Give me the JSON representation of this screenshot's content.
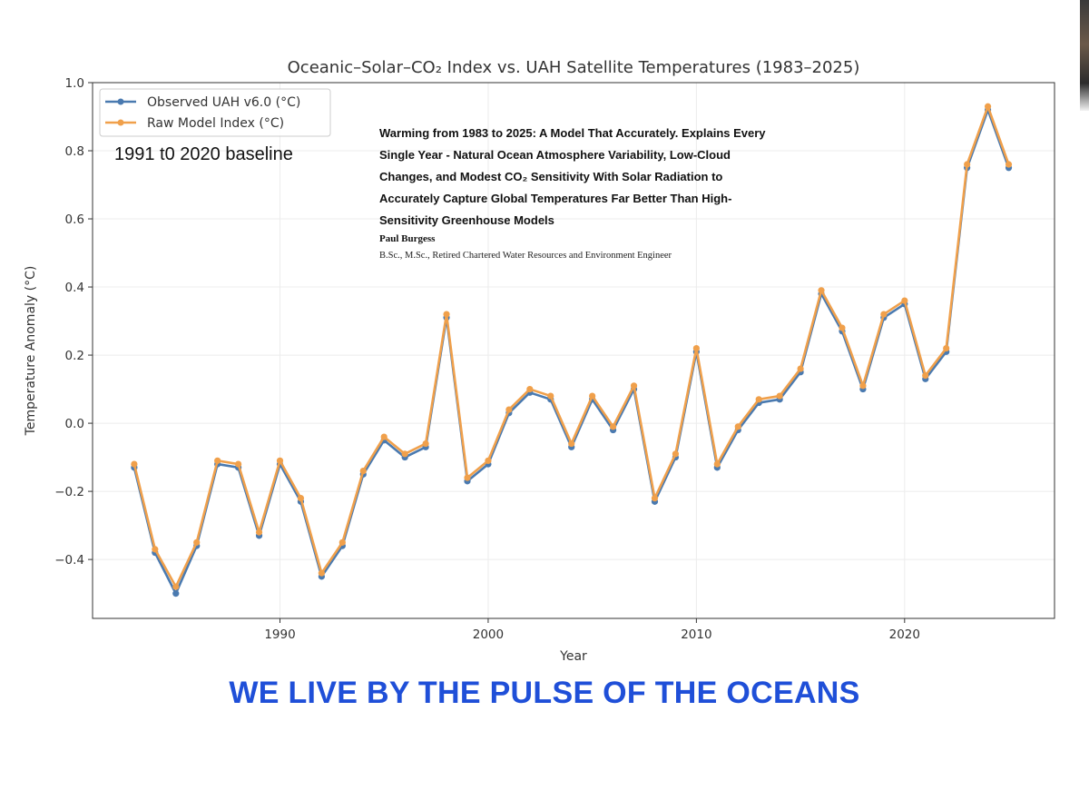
{
  "colors": {
    "observed": "#4a7ab0",
    "model": "#f0a04b",
    "slogan": "#1f4fd8",
    "axes": "#333333",
    "grid": "#ececec"
  },
  "annotation": {
    "baseline": "1991 t0 2020 baseline",
    "paper_title_lines": [
      "Warming from 1983 to 2025: A Model That Accurately. Explains Every",
      "Single Year - Natural Ocean Atmosphere Variability, Low-Cloud",
      "Changes, and Modest CO₂ Sensitivity With Solar Radiation to",
      "Accurately Capture Global Temperatures Far Better Than High-",
      "Sensitivity Greenhouse Models"
    ],
    "author": "Paul Burgess",
    "credentials": "B.Sc., M.Sc., Retired Chartered Water Resources and Environment Engineer"
  },
  "slogan": "WE LIVE BY THE PULSE OF THE OCEANS",
  "chart_data": {
    "type": "line",
    "title": "Oceanic–Solar–CO₂ Index vs. UAH Satellite Temperatures (1983–2025)",
    "xlabel": "Year",
    "ylabel": "Temperature Anomaly (°C)",
    "xlim": [
      1981,
      2027.2
    ],
    "ylim": [
      -0.573,
      1.0
    ],
    "xticks": [
      1990,
      2000,
      2010,
      2020
    ],
    "yticks": [
      1.0,
      0.8,
      0.6,
      0.4,
      0.2,
      0.0,
      -0.2,
      -0.4
    ],
    "ytick_labels": [
      "1.0",
      "0.8",
      "0.6",
      "0.4",
      "0.2",
      "0.0",
      "−0.2",
      "−0.4"
    ],
    "grid": true,
    "legend_position": "top-left",
    "x": [
      1983,
      1984,
      1985,
      1986,
      1987,
      1988,
      1989,
      1990,
      1991,
      1992,
      1993,
      1994,
      1995,
      1996,
      1997,
      1998,
      1999,
      2000,
      2001,
      2002,
      2003,
      2004,
      2005,
      2006,
      2007,
      2008,
      2009,
      2010,
      2011,
      2012,
      2013,
      2014,
      2015,
      2016,
      2017,
      2018,
      2019,
      2020,
      2021,
      2022,
      2023,
      2024,
      2025
    ],
    "series": [
      {
        "name": "Observed UAH v6.0 (°C)",
        "values": [
          -0.13,
          -0.38,
          -0.5,
          -0.36,
          -0.12,
          -0.13,
          -0.33,
          -0.12,
          -0.23,
          -0.45,
          -0.36,
          -0.15,
          -0.05,
          -0.1,
          -0.07,
          0.31,
          -0.17,
          -0.12,
          0.03,
          0.09,
          0.07,
          -0.07,
          0.07,
          -0.02,
          0.1,
          -0.23,
          -0.1,
          0.21,
          -0.13,
          -0.02,
          0.06,
          0.07,
          0.15,
          0.38,
          0.27,
          0.1,
          0.31,
          0.35,
          0.13,
          0.21,
          0.75,
          0.92,
          0.75
        ]
      },
      {
        "name": "Raw Model Index (°C)",
        "values": [
          -0.12,
          -0.37,
          -0.48,
          -0.35,
          -0.11,
          -0.12,
          -0.32,
          -0.11,
          -0.22,
          -0.44,
          -0.35,
          -0.14,
          -0.04,
          -0.09,
          -0.06,
          0.32,
          -0.16,
          -0.11,
          0.04,
          0.1,
          0.08,
          -0.06,
          0.08,
          -0.01,
          0.11,
          -0.22,
          -0.09,
          0.22,
          -0.12,
          -0.01,
          0.07,
          0.08,
          0.16,
          0.39,
          0.28,
          0.11,
          0.32,
          0.36,
          0.14,
          0.22,
          0.76,
          0.93,
          0.76
        ]
      }
    ]
  }
}
